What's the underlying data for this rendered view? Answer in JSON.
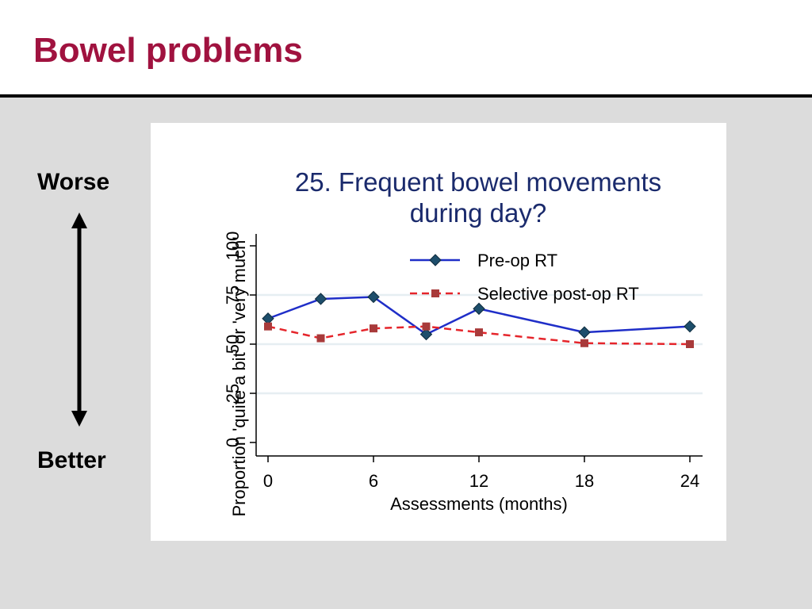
{
  "slide": {
    "title": "Bowel problems",
    "worse_label": "Worse",
    "better_label": "Better",
    "title_color": "#a0123f"
  },
  "chart_data": {
    "type": "line",
    "title_line1": "25. Frequent bowel movements",
    "title_line2": "during day?",
    "xlabel": "Assessments (months)",
    "ylabel": "Proportion 'quite a bit' or 'very much'",
    "x_ticks": [
      0,
      6,
      12,
      18,
      24
    ],
    "y_ticks": [
      0,
      25,
      50,
      75,
      100
    ],
    "xlim": [
      0,
      24
    ],
    "ylim": [
      0,
      100
    ],
    "grid": "horizontal",
    "legend_position": "top-right",
    "series": [
      {
        "name": "Pre-op RT",
        "color": "#1f2ec8",
        "marker": "diamond",
        "marker_color": "#1d4e6b",
        "line_style": "solid",
        "x": [
          0,
          3,
          6,
          9,
          12,
          18,
          24
        ],
        "y": [
          63,
          73,
          74,
          55,
          68,
          56,
          59
        ]
      },
      {
        "name": "Selective post-op RT",
        "color": "#e5252b",
        "marker": "square",
        "marker_color": "#a83a3a",
        "line_style": "dashed",
        "x": [
          0,
          3,
          6,
          9,
          12,
          18,
          24
        ],
        "y": [
          59,
          53,
          58,
          59,
          56,
          50.5,
          50
        ]
      }
    ]
  }
}
